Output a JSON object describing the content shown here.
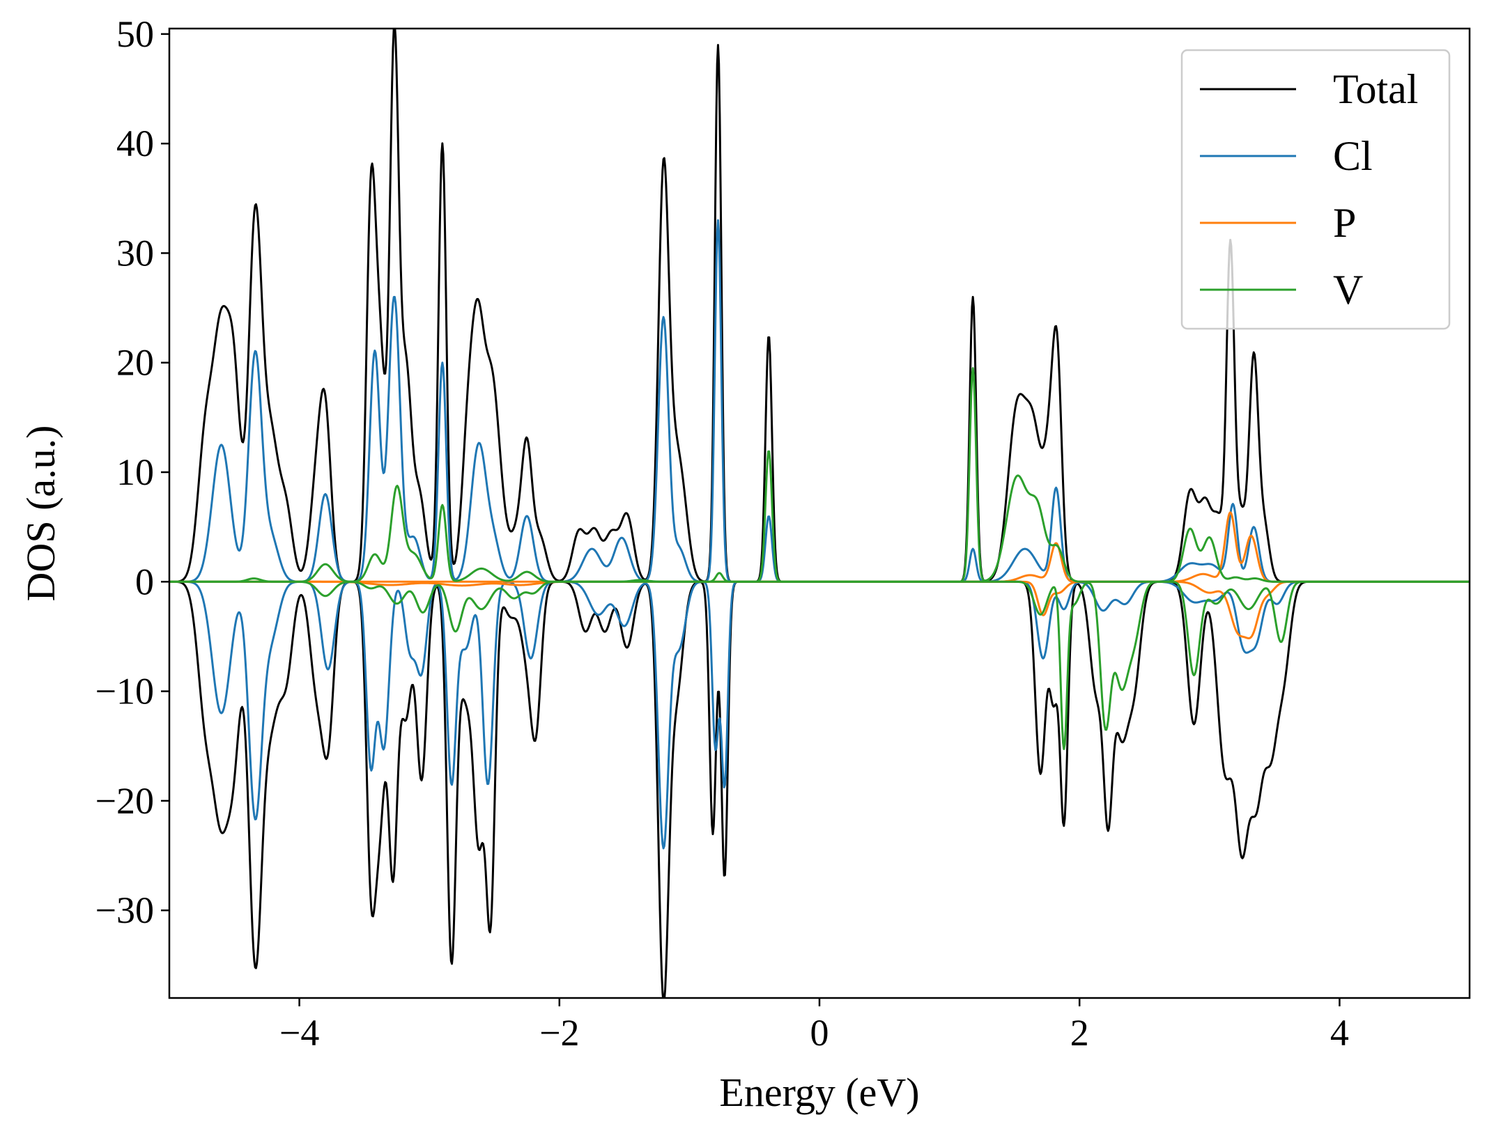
{
  "chart_data": {
    "type": "line",
    "title": "",
    "xlabel": "Energy (eV)",
    "ylabel": "DOS (a.u.)",
    "xlim": [
      -5,
      5
    ],
    "ylim": [
      -38,
      50.5
    ],
    "xticks": [
      -4,
      -2,
      0,
      2,
      4
    ],
    "xtick_labels": [
      "−4",
      "−2",
      "0",
      "2",
      "4"
    ],
    "yticks": [
      -30,
      -20,
      -10,
      0,
      10,
      20,
      30,
      40,
      50
    ],
    "ytick_labels": [
      "−30",
      "−20",
      "−10",
      "0",
      "10",
      "20",
      "30",
      "40",
      "50"
    ],
    "grid": false,
    "legend_position": "top-right",
    "series": [
      {
        "name": "Total",
        "color": "#000000",
        "up_peaks": [
          [
            -4.72,
            13.0,
            0.06
          ],
          [
            -4.6,
            21.0,
            0.06
          ],
          [
            -4.5,
            16.0,
            0.05
          ],
          [
            -4.34,
            32.5,
            0.05
          ],
          [
            -4.22,
            13.0,
            0.06
          ],
          [
            -4.1,
            6.0,
            0.05
          ],
          [
            -3.87,
            8.0,
            0.05
          ],
          [
            -3.8,
            14.0,
            0.045
          ],
          [
            -3.45,
            33.0,
            0.035
          ],
          [
            -3.38,
            20.0,
            0.04
          ],
          [
            -3.27,
            49.0,
            0.035
          ],
          [
            -3.18,
            18.0,
            0.04
          ],
          [
            -3.08,
            8.0,
            0.05
          ],
          [
            -2.9,
            40.0,
            0.03
          ],
          [
            -2.7,
            13.0,
            0.05
          ],
          [
            -2.62,
            20.0,
            0.05
          ],
          [
            -2.52,
            15.0,
            0.05
          ],
          [
            -2.45,
            5.0,
            0.05
          ],
          [
            -2.33,
            4.0,
            0.05
          ],
          [
            -2.25,
            11.5,
            0.04
          ],
          [
            -2.15,
            4.0,
            0.05
          ],
          [
            -1.85,
            4.5,
            0.05
          ],
          [
            -1.73,
            4.5,
            0.05
          ],
          [
            -1.6,
            4.2,
            0.05
          ],
          [
            -1.48,
            6.0,
            0.05
          ],
          [
            -1.2,
            36.0,
            0.04
          ],
          [
            -1.12,
            9.0,
            0.05
          ],
          [
            -1.05,
            6.0,
            0.05
          ],
          [
            -0.78,
            49.0,
            0.025
          ],
          [
            -0.39,
            22.5,
            0.025
          ],
          [
            1.18,
            26.0,
            0.025
          ],
          [
            1.52,
            15.5,
            0.07
          ],
          [
            1.65,
            12.0,
            0.06
          ],
          [
            1.78,
            12.0,
            0.05
          ],
          [
            1.83,
            15.0,
            0.035
          ],
          [
            2.85,
            8.0,
            0.05
          ],
          [
            2.97,
            7.0,
            0.05
          ],
          [
            3.07,
            5.0,
            0.04
          ],
          [
            3.16,
            30.0,
            0.03
          ],
          [
            3.24,
            6.0,
            0.04
          ],
          [
            3.34,
            20.0,
            0.035
          ],
          [
            3.42,
            5.0,
            0.04
          ]
        ],
        "down_peaks": [
          [
            -4.72,
            -12.0,
            0.06
          ],
          [
            -4.6,
            -19.5,
            0.06
          ],
          [
            -4.5,
            -13.0,
            0.05
          ],
          [
            -4.34,
            -33.5,
            0.05
          ],
          [
            -4.22,
            -12.0,
            0.06
          ],
          [
            -4.1,
            -8.0,
            0.05
          ],
          [
            -3.87,
            -9.0,
            0.05
          ],
          [
            -3.78,
            -14.0,
            0.045
          ],
          [
            -3.45,
            -25.0,
            0.035
          ],
          [
            -3.38,
            -20.0,
            0.04
          ],
          [
            -3.28,
            -26.0,
            0.035
          ],
          [
            -3.18,
            -12.0,
            0.04
          ],
          [
            -3.06,
            -18.0,
            0.04
          ],
          [
            -2.83,
            -34.0,
            0.035
          ],
          [
            -2.72,
            -10.0,
            0.05
          ],
          [
            -2.62,
            -22.0,
            0.04
          ],
          [
            -2.53,
            -30.0,
            0.035
          ],
          [
            -2.38,
            -3.0,
            0.05
          ],
          [
            -2.25,
            -6.0,
            0.05
          ],
          [
            -2.18,
            -12.0,
            0.04
          ],
          [
            -1.8,
            -4.5,
            0.05
          ],
          [
            -1.65,
            -4.5,
            0.05
          ],
          [
            -1.48,
            -6.0,
            0.05
          ],
          [
            -1.2,
            -37.0,
            0.04
          ],
          [
            -1.1,
            -10.0,
            0.05
          ],
          [
            -0.82,
            -23.0,
            0.025
          ],
          [
            -0.73,
            -27.0,
            0.025
          ],
          [
            1.7,
            -17.5,
            0.04
          ],
          [
            1.8,
            -10.0,
            0.03
          ],
          [
            1.88,
            -22.0,
            0.03
          ],
          [
            2.13,
            -10.0,
            0.05
          ],
          [
            2.22,
            -19.0,
            0.035
          ],
          [
            2.32,
            -13.0,
            0.05
          ],
          [
            2.42,
            -9.0,
            0.05
          ],
          [
            2.88,
            -13.0,
            0.05
          ],
          [
            3.12,
            -17.0,
            0.06
          ],
          [
            3.25,
            -22.0,
            0.05
          ],
          [
            3.36,
            -18.0,
            0.05
          ],
          [
            3.47,
            -14.0,
            0.05
          ],
          [
            3.57,
            -8.0,
            0.05
          ]
        ]
      },
      {
        "name": "Cl",
        "color": "#1f77b4",
        "up_peaks": [
          [
            -4.6,
            12.5,
            0.07
          ],
          [
            -4.34,
            20.5,
            0.05
          ],
          [
            -4.22,
            4.0,
            0.06
          ],
          [
            -3.8,
            8.0,
            0.05
          ],
          [
            -3.42,
            21.0,
            0.04
          ],
          [
            -3.27,
            26.0,
            0.045
          ],
          [
            -3.12,
            4.0,
            0.05
          ],
          [
            -2.9,
            20.0,
            0.03
          ],
          [
            -2.62,
            12.5,
            0.06
          ],
          [
            -2.5,
            3.0,
            0.05
          ],
          [
            -2.25,
            6.0,
            0.05
          ],
          [
            -1.75,
            3.0,
            0.07
          ],
          [
            -1.52,
            4.0,
            0.06
          ],
          [
            -1.2,
            24.0,
            0.04
          ],
          [
            -1.08,
            3.0,
            0.05
          ],
          [
            -0.78,
            33.0,
            0.025
          ],
          [
            -0.39,
            6.0,
            0.025
          ],
          [
            1.18,
            3.0,
            0.025
          ],
          [
            1.58,
            3.0,
            0.09
          ],
          [
            1.82,
            8.5,
            0.035
          ],
          [
            2.85,
            1.6,
            0.08
          ],
          [
            3.02,
            1.4,
            0.07
          ],
          [
            3.18,
            7.0,
            0.035
          ],
          [
            3.34,
            5.0,
            0.04
          ]
        ],
        "down_peaks": [
          [
            -4.6,
            -12.0,
            0.07
          ],
          [
            -4.34,
            -21.0,
            0.05
          ],
          [
            -4.22,
            -5.0,
            0.06
          ],
          [
            -3.78,
            -8.0,
            0.05
          ],
          [
            -3.45,
            -16.5,
            0.035
          ],
          [
            -3.35,
            -15.0,
            0.04
          ],
          [
            -3.15,
            -6.0,
            0.04
          ],
          [
            -3.06,
            -8.0,
            0.04
          ],
          [
            -2.83,
            -18.0,
            0.035
          ],
          [
            -2.72,
            -6.0,
            0.05
          ],
          [
            -2.55,
            -18.5,
            0.04
          ],
          [
            -2.22,
            -7.0,
            0.05
          ],
          [
            -1.7,
            -3.0,
            0.07
          ],
          [
            -1.5,
            -4.0,
            0.06
          ],
          [
            -1.2,
            -24.0,
            0.04
          ],
          [
            -1.08,
            -6.0,
            0.05
          ],
          [
            -0.8,
            -15.0,
            0.025
          ],
          [
            -0.73,
            -18.5,
            0.025
          ],
          [
            1.72,
            -7.0,
            0.045
          ],
          [
            1.88,
            -2.5,
            0.04
          ],
          [
            2.18,
            -2.6,
            0.06
          ],
          [
            2.35,
            -2.0,
            0.06
          ],
          [
            2.88,
            -1.8,
            0.08
          ],
          [
            3.05,
            -1.5,
            0.07
          ],
          [
            3.26,
            -5.5,
            0.05
          ],
          [
            3.36,
            -5.0,
            0.05
          ],
          [
            3.52,
            -2.0,
            0.05
          ]
        ]
      },
      {
        "name": "P",
        "color": "#ff7f0e",
        "up_peaks": [
          [
            -3.3,
            -0.3,
            0.15
          ],
          [
            -2.75,
            -0.35,
            0.15
          ],
          [
            -2.3,
            -0.3,
            0.12
          ],
          [
            1.62,
            0.6,
            0.08
          ],
          [
            1.82,
            3.5,
            0.04
          ],
          [
            2.95,
            0.7,
            0.08
          ],
          [
            3.16,
            6.3,
            0.04
          ],
          [
            3.32,
            4.2,
            0.045
          ]
        ],
        "down_peaks": [
          [
            1.72,
            -3.0,
            0.04
          ],
          [
            1.84,
            -1.0,
            0.05
          ],
          [
            3.0,
            -1.0,
            0.08
          ],
          [
            3.22,
            -4.4,
            0.06
          ],
          [
            3.33,
            -4.0,
            0.05
          ],
          [
            3.45,
            -1.0,
            0.05
          ]
        ]
      },
      {
        "name": "V",
        "color": "#2ca02c",
        "up_peaks": [
          [
            -4.35,
            0.3,
            0.05
          ],
          [
            -3.8,
            1.6,
            0.06
          ],
          [
            -3.42,
            2.5,
            0.05
          ],
          [
            -3.25,
            8.5,
            0.045
          ],
          [
            -3.12,
            2.5,
            0.06
          ],
          [
            -2.9,
            7.0,
            0.03
          ],
          [
            -2.6,
            1.2,
            0.08
          ],
          [
            -2.25,
            0.9,
            0.06
          ],
          [
            -1.38,
            0.15,
            0.06
          ],
          [
            -0.77,
            0.8,
            0.025
          ],
          [
            -0.39,
            12.0,
            0.025
          ],
          [
            1.18,
            19.5,
            0.025
          ],
          [
            1.52,
            9.5,
            0.08
          ],
          [
            1.68,
            6.0,
            0.06
          ],
          [
            1.83,
            3.0,
            0.05
          ],
          [
            2.85,
            4.8,
            0.05
          ],
          [
            3.0,
            4.0,
            0.05
          ],
          [
            3.2,
            0.4,
            0.05
          ],
          [
            3.35,
            0.3,
            0.05
          ]
        ],
        "down_peaks": [
          [
            -3.8,
            -1.3,
            0.06
          ],
          [
            -3.45,
            -0.6,
            0.05
          ],
          [
            -3.25,
            -2.0,
            0.06
          ],
          [
            -3.05,
            -2.8,
            0.05
          ],
          [
            -2.8,
            -4.5,
            0.05
          ],
          [
            -2.6,
            -2.5,
            0.07
          ],
          [
            -2.35,
            -1.5,
            0.06
          ],
          [
            -2.2,
            -1.0,
            0.05
          ],
          [
            1.7,
            -3.0,
            0.05
          ],
          [
            1.88,
            -15.0,
            0.025
          ],
          [
            1.96,
            -2.0,
            0.04
          ],
          [
            2.2,
            -13.0,
            0.04
          ],
          [
            2.32,
            -9.0,
            0.05
          ],
          [
            2.42,
            -5.0,
            0.05
          ],
          [
            2.88,
            -8.5,
            0.045
          ],
          [
            3.05,
            -2.0,
            0.06
          ],
          [
            3.3,
            -2.5,
            0.07
          ],
          [
            3.55,
            -5.5,
            0.045
          ]
        ]
      }
    ]
  }
}
